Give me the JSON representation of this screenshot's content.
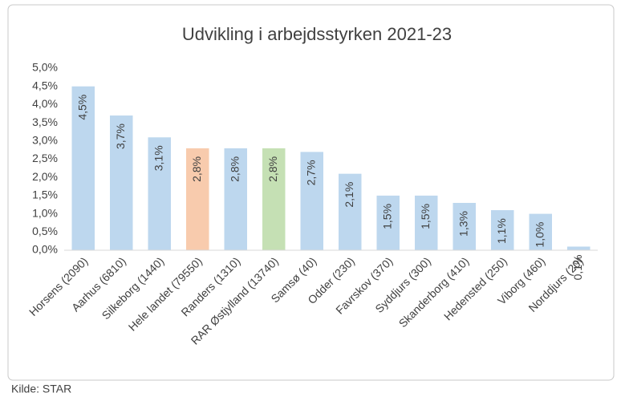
{
  "chart_data": {
    "type": "bar",
    "title": "Udvikling i arbejdsstyrken 2021-23",
    "categories": [
      "Horsens (2090)",
      "Aarhus (6810)",
      "Silkeborg (1440)",
      "Hele landet (79550)",
      "Randers (1310)",
      "RAR Østjylland (13740)",
      "Samsø (40)",
      "Odder (230)",
      "Favrskov (370)",
      "Syddjurs (300)",
      "Skanderborg (410)",
      "Hedensted (250)",
      "Viborg (460)",
      "Norddjurs (20)"
    ],
    "values": [
      4.5,
      3.7,
      3.1,
      2.8,
      2.8,
      2.8,
      2.7,
      2.1,
      1.5,
      1.5,
      1.3,
      1.1,
      1.0,
      0.1
    ],
    "value_labels": [
      "4,5%",
      "3,7%",
      "3,1%",
      "2,8%",
      "2,8%",
      "2,8%",
      "2,7%",
      "2,1%",
      "1,5%",
      "1,5%",
      "1,3%",
      "1,1%",
      "1,0%",
      "0,1%"
    ],
    "colors": [
      "#bdd7ee",
      "#bdd7ee",
      "#bdd7ee",
      "#f8cbad",
      "#bdd7ee",
      "#c5e0b4",
      "#bdd7ee",
      "#bdd7ee",
      "#bdd7ee",
      "#bdd7ee",
      "#bdd7ee",
      "#bdd7ee",
      "#bdd7ee",
      "#bdd7ee"
    ],
    "ylim": [
      0,
      5
    ],
    "yticks": [
      {
        "value": 0,
        "label": "0,0%"
      },
      {
        "value": 0.5,
        "label": "0,5%"
      },
      {
        "value": 1,
        "label": "1,0%"
      },
      {
        "value": 1.5,
        "label": "1,5%"
      },
      {
        "value": 2,
        "label": "2,0%"
      },
      {
        "value": 2.5,
        "label": "2,5%"
      },
      {
        "value": 3,
        "label": "3,0%"
      },
      {
        "value": 3.5,
        "label": "3,5%"
      },
      {
        "value": 4,
        "label": "4,0%"
      },
      {
        "value": 4.5,
        "label": "4,5%"
      },
      {
        "value": 5,
        "label": "5,0%"
      }
    ],
    "grid": false,
    "source": "Kilde: STAR"
  }
}
